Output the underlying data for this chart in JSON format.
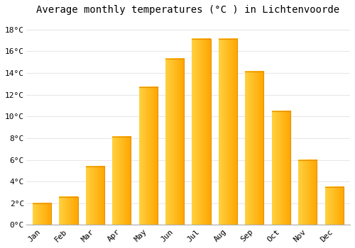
{
  "title": "Average monthly temperatures (°C ) in Lichtenvoorde",
  "months": [
    "Jan",
    "Feb",
    "Mar",
    "Apr",
    "May",
    "Jun",
    "Jul",
    "Aug",
    "Sep",
    "Oct",
    "Nov",
    "Dec"
  ],
  "values": [
    2.0,
    2.6,
    5.4,
    8.1,
    12.7,
    15.3,
    17.1,
    17.1,
    14.1,
    10.5,
    6.0,
    3.5
  ],
  "bar_color_left": "#FFD060",
  "bar_color_right": "#FFA500",
  "background_color": "#FFFFFF",
  "grid_color": "#E8E8E8",
  "ylim": [
    0,
    19
  ],
  "yticks": [
    0,
    2,
    4,
    6,
    8,
    10,
    12,
    14,
    16,
    18
  ],
  "ytick_labels": [
    "0°C",
    "2°C",
    "4°C",
    "6°C",
    "8°C",
    "10°C",
    "12°C",
    "14°C",
    "16°C",
    "18°C"
  ],
  "title_fontsize": 10,
  "tick_fontsize": 8,
  "title_font_family": "monospace",
  "bar_width": 0.7,
  "spine_color": "#AAAAAA"
}
